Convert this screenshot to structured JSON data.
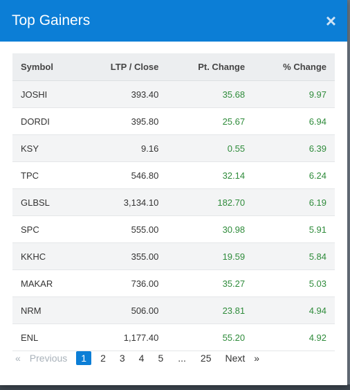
{
  "modal": {
    "title": "Top Gainers",
    "close_glyph": "×"
  },
  "table": {
    "headers": [
      "Symbol",
      "LTP / Close",
      "Pt. Change",
      "% Change"
    ],
    "rows": [
      [
        "JOSHI",
        "393.40",
        "35.68",
        "9.97"
      ],
      [
        "DORDI",
        "395.80",
        "25.67",
        "6.94"
      ],
      [
        "KSY",
        "9.16",
        "0.55",
        "6.39"
      ],
      [
        "TPC",
        "546.80",
        "32.14",
        "6.24"
      ],
      [
        "GLBSL",
        "3,134.10",
        "182.70",
        "6.19"
      ],
      [
        "SPC",
        "555.00",
        "30.98",
        "5.91"
      ],
      [
        "KKHC",
        "355.00",
        "19.59",
        "5.84"
      ],
      [
        "MAKAR",
        "736.00",
        "35.27",
        "5.03"
      ],
      [
        "NRM",
        "506.00",
        "23.81",
        "4.94"
      ],
      [
        "ENL",
        "1,177.40",
        "55.20",
        "4.92"
      ]
    ]
  },
  "pagination": {
    "prev_glyph": "«",
    "previous": "Previous",
    "pages": [
      "1",
      "2",
      "3",
      "4",
      "5"
    ],
    "ellipsis": "...",
    "last": "25",
    "next": "Next",
    "next_glyph": "»",
    "active_page": "1"
  },
  "colors": {
    "header_bg": "#0c7ed6",
    "positive": "#2e8b3a"
  }
}
